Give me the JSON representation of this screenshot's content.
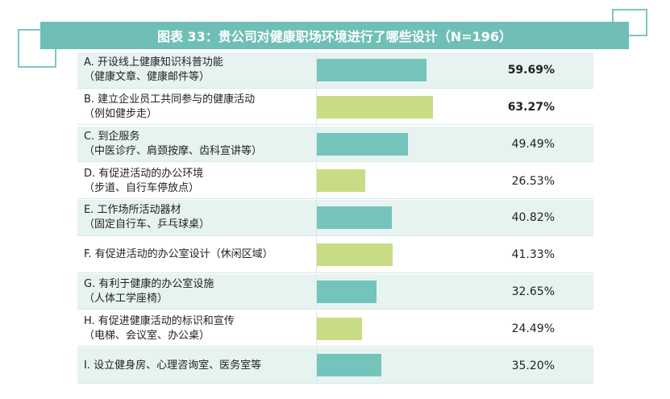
{
  "title": "图表 33：贵公司对健康职场环境进行了哪些设计（N=196）",
  "colors": {
    "teal": "#74c4bc",
    "green": "#c8dc85",
    "header": "#6fbfb6"
  },
  "chart_data": {
    "type": "bar",
    "orientation": "horizontal",
    "title": "图表 33：贵公司对健康职场环境进行了哪些设计（N=196）",
    "xlim": [
      0,
      100
    ],
    "unit": "%",
    "categories": [
      [
        "A. 开设线上健康知识科普功能",
        "（健康文章、健康邮件等）"
      ],
      [
        "B. 建立企业员工共同参与的健康活动",
        "（例如健步走）"
      ],
      [
        "C. 到企服务",
        "（中医诊疗、肩颈按摩、齿科宣讲等）"
      ],
      [
        "D. 有促进活动的办公环境",
        "（步道、自行车停放点）"
      ],
      [
        "E. 工作场所活动器材",
        "（固定自行车、乒乓球桌）"
      ],
      [
        "F. 有促进活动的办公室设计（休闲区域）"
      ],
      [
        "G. 有利于健康的办公室设施",
        "（人体工学座椅）"
      ],
      [
        "H. 有促进健康活动的标识和宣传",
        "（电梯、会议室、办公桌）"
      ],
      [
        "I. 设立健身房、心理咨询室、医务室等"
      ]
    ],
    "values": [
      59.69,
      63.27,
      49.49,
      26.53,
      40.82,
      41.33,
      32.65,
      24.49,
      35.2
    ],
    "value_labels": [
      "59.69%",
      "63.27%",
      "49.49%",
      "26.53%",
      "40.82%",
      "41.33%",
      "32.65%",
      "24.49%",
      "35.20%"
    ],
    "bar_colors": [
      "teal",
      "green",
      "teal",
      "green",
      "teal",
      "green",
      "teal",
      "green",
      "teal"
    ],
    "bold_labels": [
      true,
      true,
      false,
      false,
      false,
      false,
      false,
      false,
      false
    ]
  }
}
